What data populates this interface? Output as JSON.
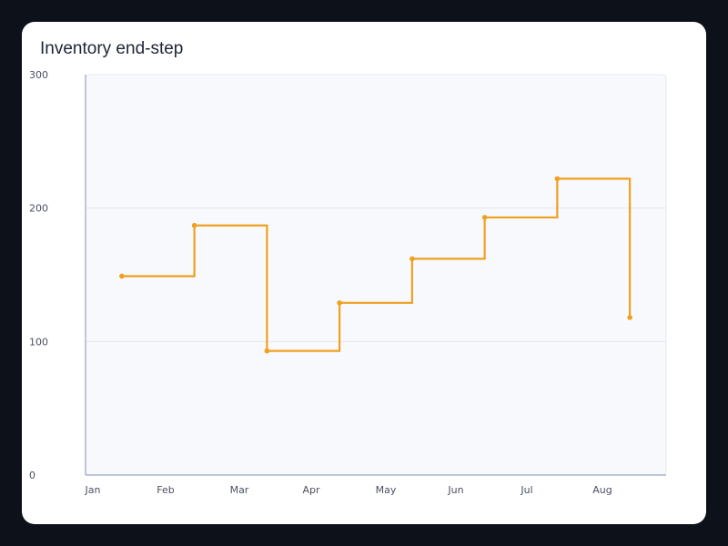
{
  "chart_data": {
    "type": "line",
    "subtype": "step-end",
    "title": "Inventory end-step",
    "xlabel": "",
    "ylabel": "",
    "categories": [
      "Jan",
      "Feb",
      "Mar",
      "Apr",
      "May",
      "Jun",
      "Jul",
      "Aug"
    ],
    "series": [
      {
        "values": [
          149,
          187,
          93,
          129,
          162,
          193,
          222,
          118
        ],
        "color": "#f0a020"
      }
    ],
    "ylim": [
      0,
      300
    ],
    "yticks": [
      0,
      100,
      200,
      300
    ],
    "grid": true,
    "legend": "none",
    "colors": {
      "plot_background": "#f8f9fc",
      "gridline": "#e3e6ee",
      "axis": "#aab4cc"
    }
  }
}
